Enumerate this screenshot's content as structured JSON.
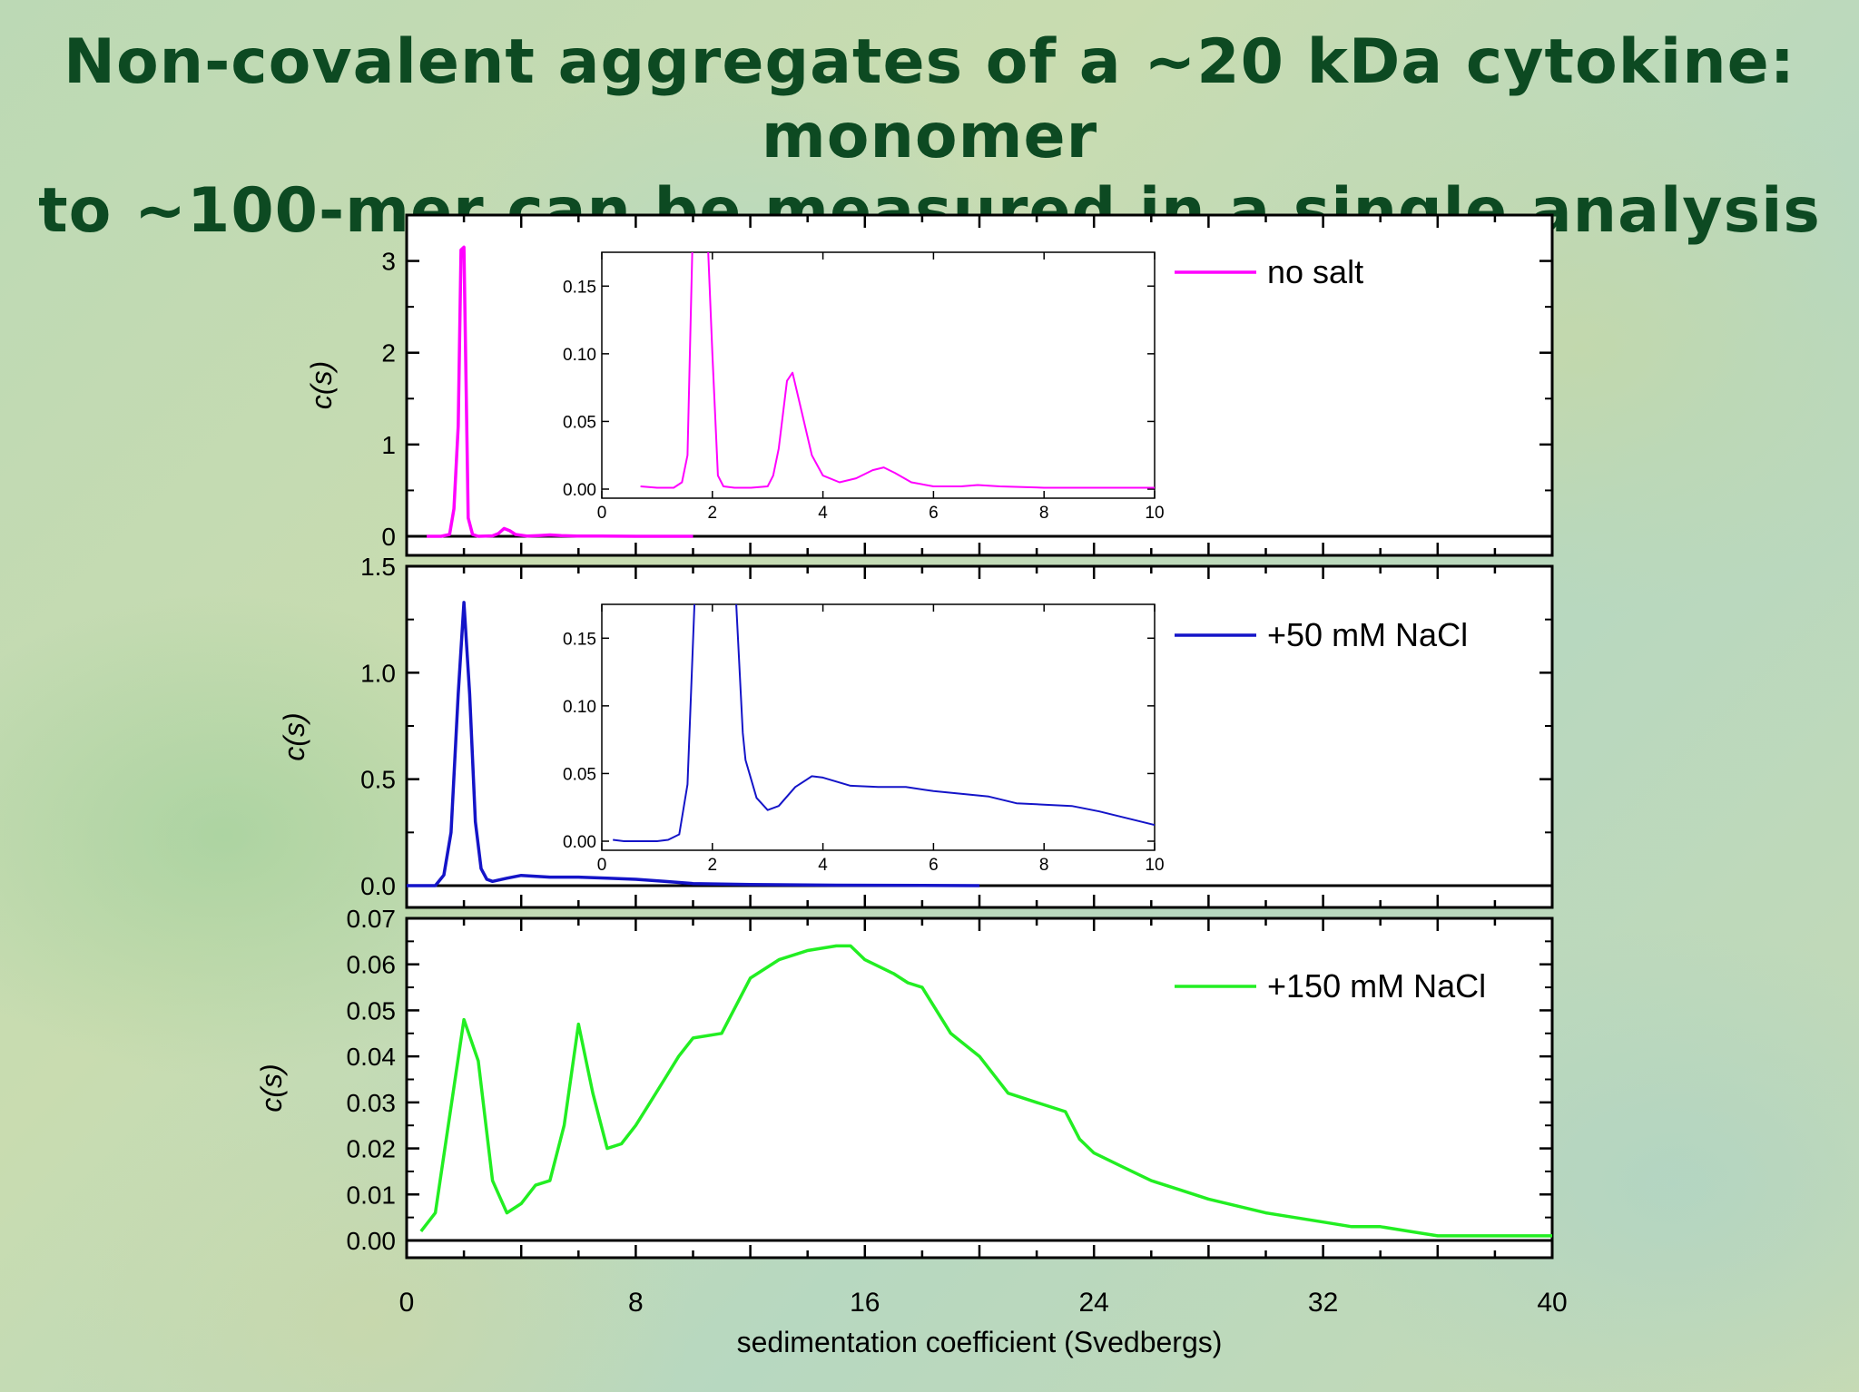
{
  "slide": {
    "title_line1": "Non-covalent aggregates of a ~20 kDa cytokine: monomer",
    "title_line2": "to ~100-mer can be measured in a single analysis"
  },
  "chart_data": [
    {
      "type": "line",
      "panel": "top",
      "ylabel": "c(s)",
      "ylim": [
        0,
        3.5
      ],
      "yticks": [
        "0",
        "1",
        "2",
        "3"
      ],
      "xlim": [
        0,
        40
      ],
      "color": "#ff00ff",
      "series": [
        {
          "name": "no salt",
          "x": [
            0.7,
            1.2,
            1.5,
            1.65,
            1.8,
            1.9,
            2.0,
            2.15,
            2.3,
            2.5,
            3.0,
            3.2,
            3.4,
            3.6,
            3.8,
            4.2,
            4.6,
            5.0,
            5.4,
            6.0,
            6.8,
            8.0,
            10.0
          ],
          "y": [
            0.0,
            0.0,
            0.02,
            0.3,
            1.2,
            3.12,
            3.15,
            0.2,
            0.02,
            0.0,
            0.005,
            0.03,
            0.085,
            0.06,
            0.02,
            0.003,
            0.008,
            0.015,
            0.008,
            0.002,
            0.003,
            0.0,
            0.0
          ]
        }
      ],
      "inset": {
        "xlim": [
          0,
          10
        ],
        "ylim": [
          0,
          0.175
        ],
        "xticks": [
          "0",
          "2",
          "4",
          "6",
          "8",
          "10"
        ],
        "yticks": [
          "0.00",
          "0.05",
          "0.10",
          "0.15"
        ],
        "x": [
          0.7,
          1.0,
          1.3,
          1.45,
          1.55,
          1.65,
          1.9,
          2.0,
          2.1,
          2.2,
          2.4,
          2.7,
          3.0,
          3.1,
          3.2,
          3.35,
          3.45,
          3.6,
          3.8,
          4.0,
          4.3,
          4.6,
          4.9,
          5.1,
          5.3,
          5.6,
          6.0,
          6.5,
          6.8,
          7.2,
          8.0,
          9.0,
          10.0
        ],
        "y": [
          0.002,
          0.001,
          0.001,
          0.005,
          0.025,
          0.2,
          0.2,
          0.1,
          0.01,
          0.002,
          0.001,
          0.001,
          0.002,
          0.01,
          0.03,
          0.08,
          0.086,
          0.06,
          0.025,
          0.01,
          0.005,
          0.008,
          0.014,
          0.016,
          0.012,
          0.005,
          0.002,
          0.002,
          0.003,
          0.002,
          0.001,
          0.001,
          0.001
        ]
      }
    },
    {
      "type": "line",
      "panel": "middle",
      "ylabel": "c(s)",
      "ylim": [
        0,
        1.5
      ],
      "yticks": [
        "0.0",
        "0.5",
        "1.0",
        "1.5"
      ],
      "xlim": [
        0,
        40
      ],
      "color": "#1414c8",
      "series": [
        {
          "name": "+50 mM NaCl",
          "x": [
            0,
            1.0,
            1.3,
            1.55,
            1.8,
            2.0,
            2.2,
            2.4,
            2.6,
            2.8,
            3.0,
            3.5,
            4.0,
            5.0,
            6.0,
            7.0,
            8.0,
            9.0,
            10.0,
            12.0,
            15.0,
            20.0
          ],
          "y": [
            0.0,
            0.0,
            0.05,
            0.25,
            0.9,
            1.33,
            0.9,
            0.3,
            0.08,
            0.03,
            0.02,
            0.035,
            0.048,
            0.04,
            0.04,
            0.035,
            0.03,
            0.02,
            0.01,
            0.005,
            0.002,
            0.0
          ]
        }
      ],
      "inset": {
        "xlim": [
          0,
          10
        ],
        "ylim": [
          0,
          0.175
        ],
        "xticks": [
          "0",
          "2",
          "4",
          "6",
          "8",
          "10"
        ],
        "yticks": [
          "0.00",
          "0.05",
          "0.10",
          "0.15"
        ],
        "x": [
          0.2,
          0.4,
          0.8,
          1.0,
          1.2,
          1.4,
          1.55,
          1.7,
          2.4,
          2.55,
          2.6,
          2.8,
          3.0,
          3.2,
          3.5,
          3.8,
          4.0,
          4.5,
          5.0,
          5.5,
          6.0,
          6.5,
          7.0,
          7.5,
          8.0,
          8.5,
          9.0,
          10.0
        ],
        "y": [
          0.001,
          0.0,
          0.0,
          0.0,
          0.001,
          0.005,
          0.042,
          0.2,
          0.2,
          0.08,
          0.06,
          0.032,
          0.023,
          0.026,
          0.04,
          0.048,
          0.047,
          0.041,
          0.04,
          0.04,
          0.037,
          0.035,
          0.033,
          0.028,
          0.027,
          0.026,
          0.022,
          0.012
        ]
      }
    },
    {
      "type": "line",
      "panel": "bottom",
      "ylabel": "c(s)",
      "xlabel": "sedimentation coefficient (Svedbergs)",
      "ylim": [
        -0.004,
        0.07
      ],
      "yticks": [
        "0.00",
        "0.01",
        "0.02",
        "0.03",
        "0.04",
        "0.05",
        "0.06",
        "0.07"
      ],
      "xlim": [
        0,
        40
      ],
      "xticks": [
        "0",
        "8",
        "16",
        "24",
        "32",
        "40"
      ],
      "color": "#22ee22",
      "series": [
        {
          "name": "+150 mM NaCl",
          "x": [
            0.5,
            1.0,
            2.0,
            2.5,
            3.0,
            3.5,
            4.0,
            4.5,
            5.0,
            5.5,
            6.0,
            6.5,
            7.0,
            7.5,
            8.0,
            8.5,
            9.0,
            9.5,
            10.0,
            11.0,
            12.0,
            13.0,
            14.0,
            15.0,
            15.5,
            16.0,
            17.0,
            17.5,
            18.0,
            19.0,
            20.0,
            21.0,
            22.0,
            23.0,
            23.5,
            24.0,
            25.0,
            26.0,
            27.0,
            28.0,
            30.0,
            32.0,
            33.0,
            34.0,
            35.0,
            36.0,
            38.0,
            40.0
          ],
          "y": [
            0.002,
            0.006,
            0.048,
            0.039,
            0.013,
            0.006,
            0.008,
            0.012,
            0.013,
            0.025,
            0.047,
            0.032,
            0.02,
            0.021,
            0.025,
            0.03,
            0.035,
            0.04,
            0.044,
            0.045,
            0.057,
            0.061,
            0.063,
            0.064,
            0.064,
            0.061,
            0.058,
            0.056,
            0.055,
            0.045,
            0.04,
            0.032,
            0.03,
            0.028,
            0.022,
            0.019,
            0.016,
            0.013,
            0.011,
            0.009,
            0.006,
            0.004,
            0.003,
            0.003,
            0.002,
            0.001,
            0.001,
            0.001
          ]
        }
      ]
    }
  ]
}
